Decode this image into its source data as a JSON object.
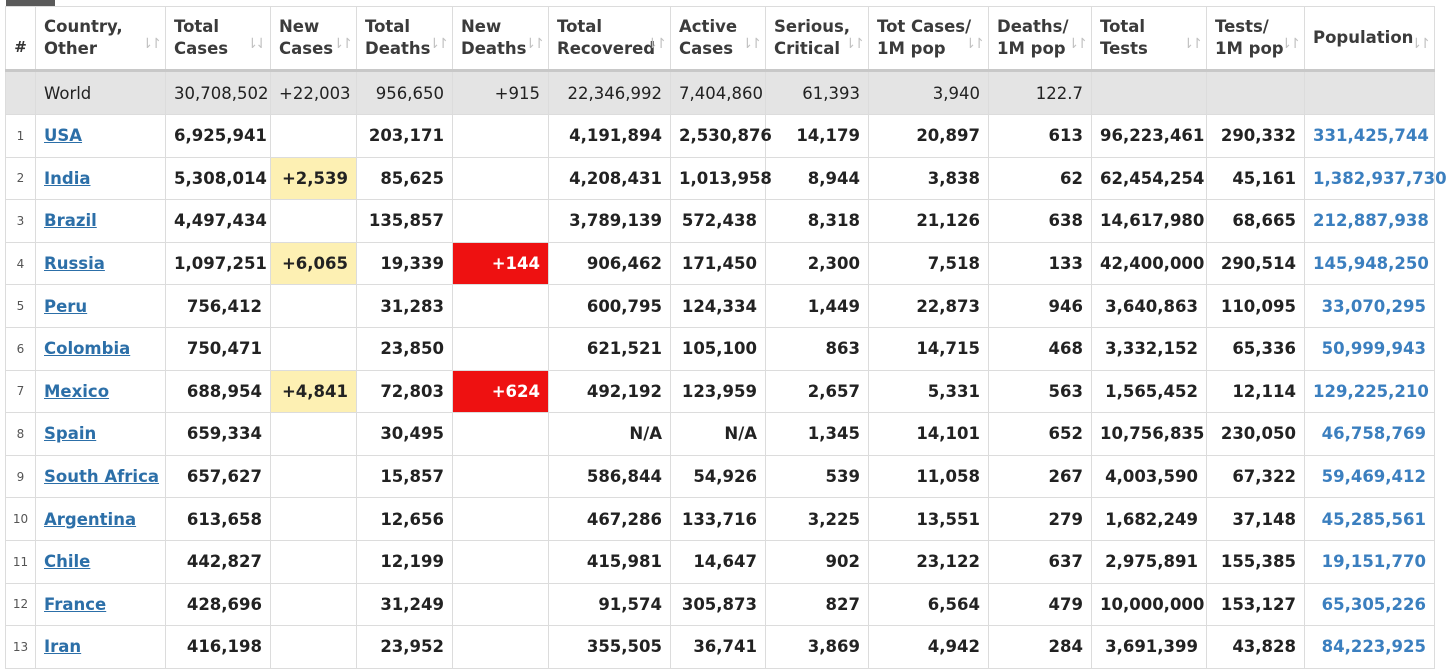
{
  "headers": [
    {
      "key": "idx",
      "label": "#",
      "sortable": false
    },
    {
      "key": "country",
      "label": "Country,\nOther",
      "sortable": true
    },
    {
      "key": "total_cases",
      "label": "Total\nCases",
      "sortable": true
    },
    {
      "key": "new_cases",
      "label": "New\nCases",
      "sortable": true
    },
    {
      "key": "total_deaths",
      "label": "Total\nDeaths",
      "sortable": true
    },
    {
      "key": "new_deaths",
      "label": "New\nDeaths",
      "sortable": true
    },
    {
      "key": "total_recovered",
      "label": "Total\nRecovered",
      "sortable": true
    },
    {
      "key": "active_cases",
      "label": "Active\nCases",
      "sortable": true
    },
    {
      "key": "serious",
      "label": "Serious,\nCritical",
      "sortable": true
    },
    {
      "key": "cases_per_m",
      "label": "Tot Cases/\n1M pop",
      "sortable": true
    },
    {
      "key": "deaths_per_m",
      "label": "Deaths/\n1M pop",
      "sortable": true
    },
    {
      "key": "total_tests",
      "label": "Total\nTests",
      "sortable": true
    },
    {
      "key": "tests_per_m",
      "label": "Tests/\n1M pop",
      "sortable": true
    },
    {
      "key": "population",
      "label": "Population",
      "sortable": true
    }
  ],
  "sort_icons": {
    "active": "⇂⇃",
    "inactive": "⇂↾"
  },
  "world": {
    "country": "World",
    "total_cases": "30,708,502",
    "new_cases": "+22,003",
    "total_deaths": "956,650",
    "new_deaths": "+915",
    "total_recovered": "22,346,992",
    "active_cases": "7,404,860",
    "serious": "61,393",
    "cases_per_m": "3,940",
    "deaths_per_m": "122.7",
    "total_tests": "",
    "tests_per_m": "",
    "population": ""
  },
  "rows": [
    {
      "idx": "1",
      "country": "USA",
      "total_cases": "6,925,941",
      "new_cases": "",
      "total_deaths": "203,171",
      "new_deaths": "",
      "total_recovered": "4,191,894",
      "active_cases": "2,530,876",
      "serious": "14,179",
      "cases_per_m": "20,897",
      "deaths_per_m": "613",
      "total_tests": "96,223,461",
      "tests_per_m": "290,332",
      "population": "331,425,744"
    },
    {
      "idx": "2",
      "country": "India",
      "total_cases": "5,308,014",
      "new_cases": "+2,539",
      "total_deaths": "85,625",
      "new_deaths": "",
      "total_recovered": "4,208,431",
      "active_cases": "1,013,958",
      "serious": "8,944",
      "cases_per_m": "3,838",
      "deaths_per_m": "62",
      "total_tests": "62,454,254",
      "tests_per_m": "45,161",
      "population": "1,382,937,730"
    },
    {
      "idx": "3",
      "country": "Brazil",
      "total_cases": "4,497,434",
      "new_cases": "",
      "total_deaths": "135,857",
      "new_deaths": "",
      "total_recovered": "3,789,139",
      "active_cases": "572,438",
      "serious": "8,318",
      "cases_per_m": "21,126",
      "deaths_per_m": "638",
      "total_tests": "14,617,980",
      "tests_per_m": "68,665",
      "population": "212,887,938"
    },
    {
      "idx": "4",
      "country": "Russia",
      "total_cases": "1,097,251",
      "new_cases": "+6,065",
      "total_deaths": "19,339",
      "new_deaths": "+144",
      "total_recovered": "906,462",
      "active_cases": "171,450",
      "serious": "2,300",
      "cases_per_m": "7,518",
      "deaths_per_m": "133",
      "total_tests": "42,400,000",
      "tests_per_m": "290,514",
      "population": "145,948,250"
    },
    {
      "idx": "5",
      "country": "Peru",
      "total_cases": "756,412",
      "new_cases": "",
      "total_deaths": "31,283",
      "new_deaths": "",
      "total_recovered": "600,795",
      "active_cases": "124,334",
      "serious": "1,449",
      "cases_per_m": "22,873",
      "deaths_per_m": "946",
      "total_tests": "3,640,863",
      "tests_per_m": "110,095",
      "population": "33,070,295"
    },
    {
      "idx": "6",
      "country": "Colombia",
      "total_cases": "750,471",
      "new_cases": "",
      "total_deaths": "23,850",
      "new_deaths": "",
      "total_recovered": "621,521",
      "active_cases": "105,100",
      "serious": "863",
      "cases_per_m": "14,715",
      "deaths_per_m": "468",
      "total_tests": "3,332,152",
      "tests_per_m": "65,336",
      "population": "50,999,943"
    },
    {
      "idx": "7",
      "country": "Mexico",
      "total_cases": "688,954",
      "new_cases": "+4,841",
      "total_deaths": "72,803",
      "new_deaths": "+624",
      "total_recovered": "492,192",
      "active_cases": "123,959",
      "serious": "2,657",
      "cases_per_m": "5,331",
      "deaths_per_m": "563",
      "total_tests": "1,565,452",
      "tests_per_m": "12,114",
      "population": "129,225,210"
    },
    {
      "idx": "8",
      "country": "Spain",
      "total_cases": "659,334",
      "new_cases": "",
      "total_deaths": "30,495",
      "new_deaths": "",
      "total_recovered": "N/A",
      "active_cases": "N/A",
      "serious": "1,345",
      "cases_per_m": "14,101",
      "deaths_per_m": "652",
      "total_tests": "10,756,835",
      "tests_per_m": "230,050",
      "population": "46,758,769"
    },
    {
      "idx": "9",
      "country": "South Africa",
      "total_cases": "657,627",
      "new_cases": "",
      "total_deaths": "15,857",
      "new_deaths": "",
      "total_recovered": "586,844",
      "active_cases": "54,926",
      "serious": "539",
      "cases_per_m": "11,058",
      "deaths_per_m": "267",
      "total_tests": "4,003,590",
      "tests_per_m": "67,322",
      "population": "59,469,412"
    },
    {
      "idx": "10",
      "country": "Argentina",
      "total_cases": "613,658",
      "new_cases": "",
      "total_deaths": "12,656",
      "new_deaths": "",
      "total_recovered": "467,286",
      "active_cases": "133,716",
      "serious": "3,225",
      "cases_per_m": "13,551",
      "deaths_per_m": "279",
      "total_tests": "1,682,249",
      "tests_per_m": "37,148",
      "population": "45,285,561"
    },
    {
      "idx": "11",
      "country": "Chile",
      "total_cases": "442,827",
      "new_cases": "",
      "total_deaths": "12,199",
      "new_deaths": "",
      "total_recovered": "415,981",
      "active_cases": "14,647",
      "serious": "902",
      "cases_per_m": "23,122",
      "deaths_per_m": "637",
      "total_tests": "2,975,891",
      "tests_per_m": "155,385",
      "population": "19,151,770"
    },
    {
      "idx": "12",
      "country": "France",
      "total_cases": "428,696",
      "new_cases": "",
      "total_deaths": "31,249",
      "new_deaths": "",
      "total_recovered": "91,574",
      "active_cases": "305,873",
      "serious": "827",
      "cases_per_m": "6,564",
      "deaths_per_m": "479",
      "total_tests": "10,000,000",
      "tests_per_m": "153,127",
      "population": "65,305,226"
    },
    {
      "idx": "13",
      "country": "Iran",
      "total_cases": "416,198",
      "new_cases": "",
      "total_deaths": "23,952",
      "new_deaths": "",
      "total_recovered": "355,505",
      "active_cases": "36,741",
      "serious": "3,869",
      "cases_per_m": "4,942",
      "deaths_per_m": "284",
      "total_tests": "3,691,399",
      "tests_per_m": "43,828",
      "population": "84,223,925"
    }
  ],
  "colors": {
    "link": "#2c6fa8",
    "population": "#3b7fbf",
    "new_cases_highlight": "#fdf0b3",
    "new_deaths_highlight": "#ee1111",
    "world_row": "#e4e4e4"
  }
}
